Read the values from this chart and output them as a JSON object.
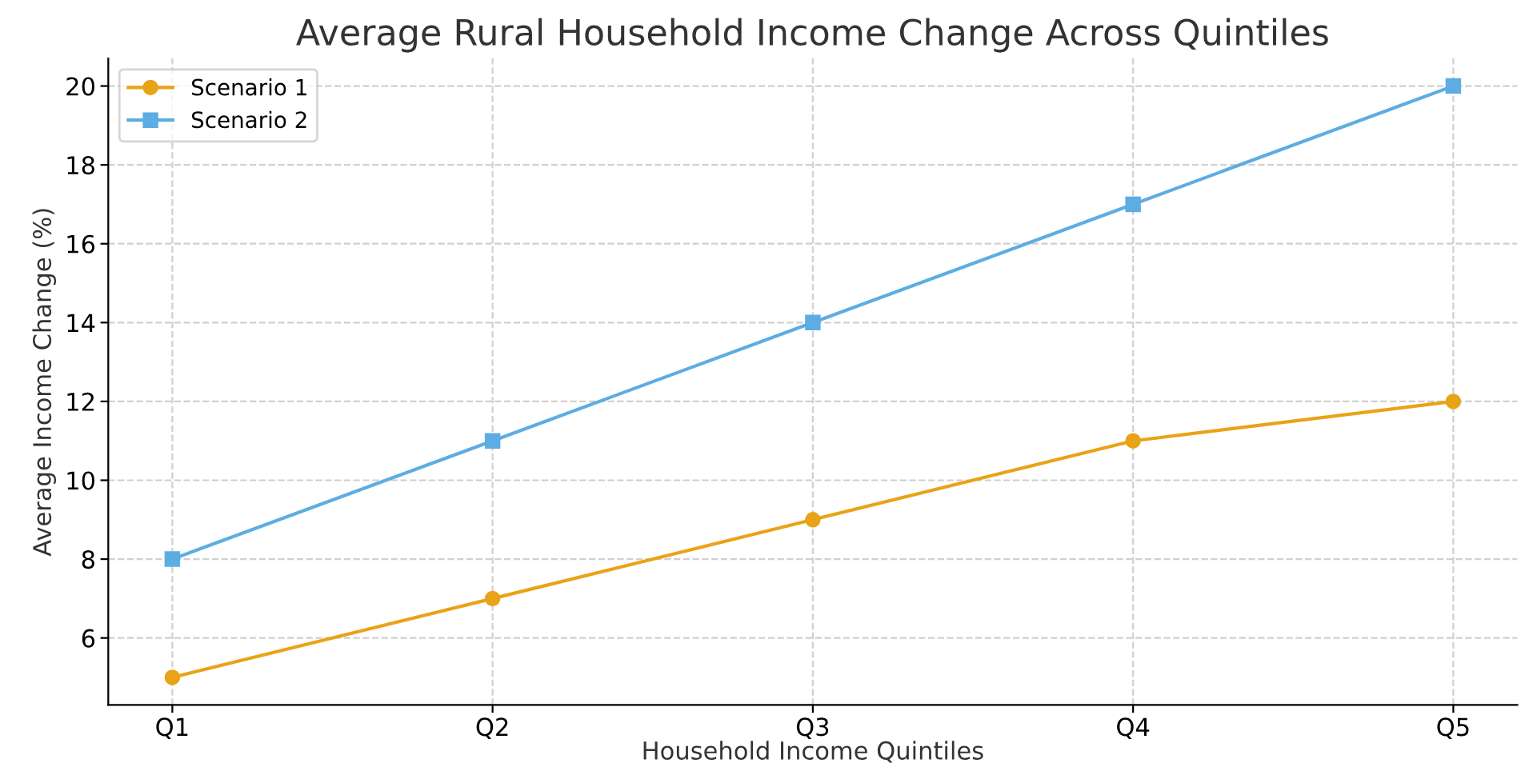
{
  "chart_data": {
    "type": "line",
    "title": "Average Rural Household Income Change Across Quintiles",
    "xlabel": "Household Income Quintiles",
    "ylabel": "Average Income Change (%)",
    "categories": [
      "Q1",
      "Q2",
      "Q3",
      "Q4",
      "Q5"
    ],
    "series": [
      {
        "name": "Scenario 1",
        "color": "#e8a317",
        "marker": "circle",
        "values": [
          5,
          7,
          9,
          11,
          12
        ]
      },
      {
        "name": "Scenario 2",
        "color": "#5dade2",
        "marker": "square",
        "values": [
          8,
          11,
          14,
          17,
          20
        ]
      }
    ],
    "ylim": [
      4.3,
      20.7
    ],
    "yticks": [
      6,
      8,
      10,
      12,
      14,
      16,
      18,
      20
    ],
    "grid": true,
    "legend": "top left",
    "line_style": "solid"
  }
}
